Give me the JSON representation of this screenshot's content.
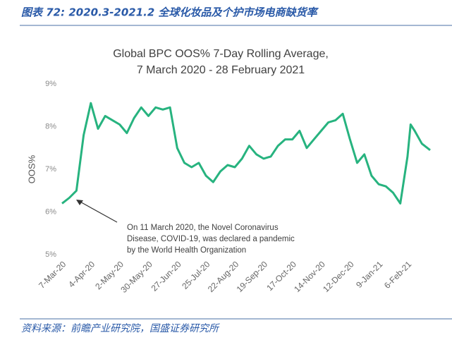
{
  "header": "图表 72:  2020.3-2021.2 全球化妆品及个护市场电商缺货率",
  "source": "资料来源：前瞻产业研究院，国盛证券研究所",
  "chart_data": {
    "type": "line",
    "title": [
      "Global BPC OOS% 7-Day Rolling Average,",
      "7 March 2020 - 28 February 2021"
    ],
    "ylabel": "OOS%",
    "annotation": [
      "On 11 March 2020, the Novel Coronavirus",
      "Disease, COVID-19, was declared a pandemic",
      "by the World Health Organization"
    ],
    "x": [
      "2020-03-07",
      "2020-03-14",
      "2020-03-21",
      "2020-03-28",
      "2020-04-04",
      "2020-04-11",
      "2020-04-18",
      "2020-04-25",
      "2020-05-02",
      "2020-05-09",
      "2020-05-16",
      "2020-05-23",
      "2020-05-30",
      "2020-06-06",
      "2020-06-13",
      "2020-06-20",
      "2020-06-27",
      "2020-07-04",
      "2020-07-11",
      "2020-07-18",
      "2020-07-25",
      "2020-08-01",
      "2020-08-08",
      "2020-08-15",
      "2020-08-22",
      "2020-08-29",
      "2020-09-05",
      "2020-09-12",
      "2020-09-19",
      "2020-09-26",
      "2020-10-03",
      "2020-10-10",
      "2020-10-17",
      "2020-10-24",
      "2020-10-31",
      "2020-11-07",
      "2020-11-14",
      "2020-11-21",
      "2020-11-28",
      "2020-12-05",
      "2020-12-12",
      "2020-12-19",
      "2020-12-26",
      "2021-01-02",
      "2021-01-09",
      "2021-01-16",
      "2021-01-23",
      "2021-01-30",
      "2021-02-06",
      "2021-02-09",
      "2021-02-13",
      "2021-02-20",
      "2021-02-28"
    ],
    "series": [
      {
        "name": "OOS%",
        "color": "#27b37f",
        "values": [
          6.2,
          6.33,
          6.5,
          7.8,
          8.55,
          7.95,
          8.25,
          8.15,
          8.05,
          7.85,
          8.2,
          8.45,
          8.25,
          8.45,
          8.4,
          8.45,
          7.5,
          7.15,
          7.05,
          7.15,
          6.85,
          6.7,
          6.95,
          7.1,
          7.05,
          7.25,
          7.55,
          7.35,
          7.25,
          7.3,
          7.55,
          7.7,
          7.7,
          7.9,
          7.5,
          7.7,
          7.9,
          8.1,
          8.15,
          8.3,
          7.7,
          7.15,
          7.35,
          6.85,
          6.65,
          6.6,
          6.45,
          6.2,
          7.3,
          8.05,
          7.9,
          7.6,
          7.45
        ]
      }
    ],
    "xlim": [
      "2020-03-07",
      "2021-02-28"
    ],
    "xticks": [
      {
        "value": "2020-03-07",
        "label": "7-Mar-20"
      },
      {
        "value": "2020-04-04",
        "label": "4-Apr-20"
      },
      {
        "value": "2020-05-02",
        "label": "2-May-20"
      },
      {
        "value": "2020-05-30",
        "label": "30-May-20"
      },
      {
        "value": "2020-06-27",
        "label": "27-Jun-20"
      },
      {
        "value": "2020-07-25",
        "label": "25-Jul-20"
      },
      {
        "value": "2020-08-22",
        "label": "22-Aug-20"
      },
      {
        "value": "2020-09-19",
        "label": "19-Sep-20"
      },
      {
        "value": "2020-10-17",
        "label": "17-Oct-20"
      },
      {
        "value": "2020-11-14",
        "label": "14-Nov-20"
      },
      {
        "value": "2020-12-12",
        "label": "12-Dec-20"
      },
      {
        "value": "2021-01-09",
        "label": "9-Jan-21"
      },
      {
        "value": "2021-02-06",
        "label": "6-Feb-21"
      }
    ],
    "ylim": [
      5,
      9
    ],
    "yticks": [
      {
        "value": 5,
        "label": "5%"
      },
      {
        "value": 6,
        "label": "6%"
      },
      {
        "value": 7,
        "label": "7%"
      },
      {
        "value": 8,
        "label": "8%"
      },
      {
        "value": 9,
        "label": "9%"
      }
    ],
    "grid": false
  }
}
